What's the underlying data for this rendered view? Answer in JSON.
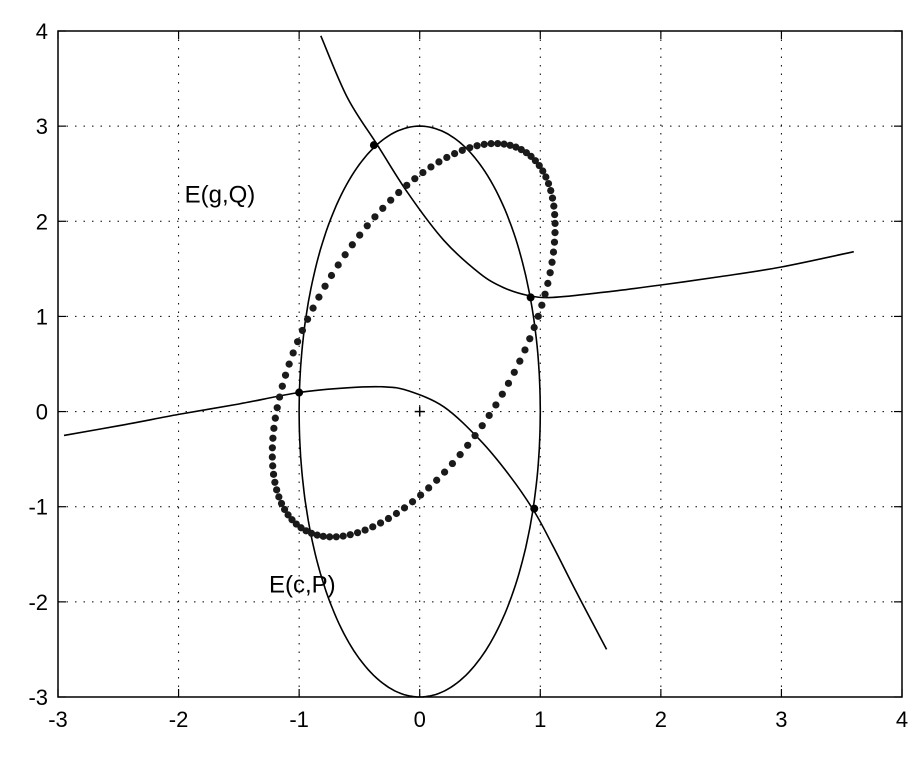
{
  "chart_data": {
    "type": "line",
    "title": "",
    "xlabel": "",
    "ylabel": "",
    "xlim": [
      -3,
      4
    ],
    "ylim": [
      -3,
      4
    ],
    "xticks": [
      -3,
      -2,
      -1,
      0,
      1,
      2,
      3,
      4
    ],
    "yticks": [
      -3,
      -2,
      -1,
      0,
      1,
      2,
      3,
      4
    ],
    "xtick_labels": [
      "-3",
      "-2",
      "-1",
      "0",
      "1",
      "2",
      "3",
      "4"
    ],
    "ytick_labels": [
      "-3",
      "-2",
      "-1",
      "0",
      "1",
      "2",
      "3",
      "4"
    ],
    "grid": true,
    "series": [
      {
        "style": "dotted-markers",
        "shape": "ellipse",
        "center": [
          -0.05,
          0.75
        ],
        "semi_axes": [
          0.9,
          2.2
        ],
        "rotation_deg": -22
      },
      {
        "style": "solid",
        "shape": "ellipse",
        "center": [
          0,
          0
        ],
        "semi_axes": [
          1,
          3
        ],
        "rotation_deg": 0
      },
      {
        "style": "solid",
        "shape": "curve",
        "x": [
          -0.82,
          -0.6,
          -0.35,
          -0.1,
          0.2,
          0.5,
          0.7,
          0.9,
          1.1,
          1.5,
          2.0,
          2.5,
          3.0,
          3.6
        ],
        "y": [
          3.95,
          3.3,
          2.8,
          2.3,
          1.8,
          1.45,
          1.3,
          1.22,
          1.2,
          1.25,
          1.33,
          1.42,
          1.52,
          1.68
        ]
      },
      {
        "style": "solid",
        "shape": "curve",
        "x": [
          -2.95,
          -2.5,
          -2.0,
          -1.5,
          -1.0,
          -0.6,
          -0.3,
          -0.1,
          0.2,
          0.5,
          0.75,
          0.95,
          1.1,
          1.3,
          1.55
        ],
        "y": [
          -0.25,
          -0.15,
          -0.03,
          0.08,
          0.2,
          0.25,
          0.26,
          0.22,
          0.05,
          -0.3,
          -0.68,
          -1.05,
          -1.4,
          -1.9,
          -2.5
        ]
      }
    ],
    "intersection_points": [
      {
        "x": -0.38,
        "y": 2.8
      },
      {
        "x": 0.92,
        "y": 1.2
      },
      {
        "x": -1.0,
        "y": 0.2
      },
      {
        "x": 0.95,
        "y": -1.02
      }
    ],
    "center_marker": {
      "x": 0,
      "y": 0,
      "symbol": "+"
    },
    "annotations": [
      {
        "text": "E(g,Q)",
        "x": -1.95,
        "y": 2.2
      },
      {
        "text": "E(c,P)",
        "x": -1.25,
        "y": -1.9
      }
    ]
  }
}
